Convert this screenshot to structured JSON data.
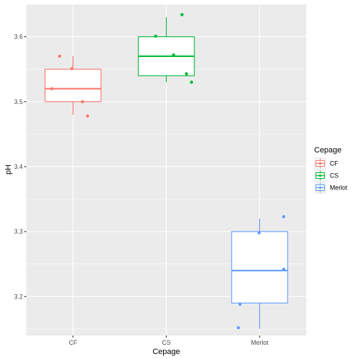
{
  "chart_data": {
    "type": "boxplot",
    "title": "",
    "xlabel": "Cepage",
    "ylabel": "pH",
    "categories": [
      "CF",
      "CS",
      "Merlot"
    ],
    "ylim": [
      3.14,
      3.65
    ],
    "yticks": [
      3.2,
      3.3,
      3.4,
      3.5,
      3.6
    ],
    "ytick_labels": [
      "3.2",
      "3.3",
      "3.4",
      "3.5",
      "3.6"
    ],
    "grid": true,
    "legend": {
      "title": "Cepage",
      "placement": "right",
      "entries": [
        "CF",
        "CS",
        "Merlot"
      ]
    },
    "series": [
      {
        "name": "CF",
        "color": "#F8766D",
        "box": {
          "q1": 3.5,
          "median": 3.52,
          "q3": 3.55,
          "whisker_low": 3.48,
          "whisker_high": 3.57
        },
        "points": [
          {
            "x": 0.62,
            "y": 3.52
          },
          {
            "x": 0.76,
            "y": 3.57
          },
          {
            "x": 0.98,
            "y": 3.551
          },
          {
            "x": 1.17,
            "y": 3.5
          },
          {
            "x": 1.26,
            "y": 3.478
          }
        ]
      },
      {
        "name": "CS",
        "color": "#00BA38",
        "box": {
          "q1": 3.54,
          "median": 3.57,
          "q3": 3.6,
          "whisker_low": 3.53,
          "whisker_high": 3.63
        },
        "points": [
          {
            "x": 0.81,
            "y": 3.601
          },
          {
            "x": 1.13,
            "y": 3.572
          },
          {
            "x": 1.28,
            "y": 3.634
          },
          {
            "x": 1.36,
            "y": 3.543
          },
          {
            "x": 1.45,
            "y": 3.53
          }
        ]
      },
      {
        "name": "Merlot",
        "color": "#619CFF",
        "box": {
          "q1": 3.19,
          "median": 3.24,
          "q3": 3.3,
          "whisker_low": 3.15,
          "whisker_high": 3.32
        },
        "points": [
          {
            "x": 0.62,
            "y": 3.152
          },
          {
            "x": 0.65,
            "y": 3.188
          },
          {
            "x": 0.99,
            "y": 3.298
          },
          {
            "x": 1.43,
            "y": 3.242
          },
          {
            "x": 1.43,
            "y": 3.323
          }
        ]
      }
    ]
  }
}
